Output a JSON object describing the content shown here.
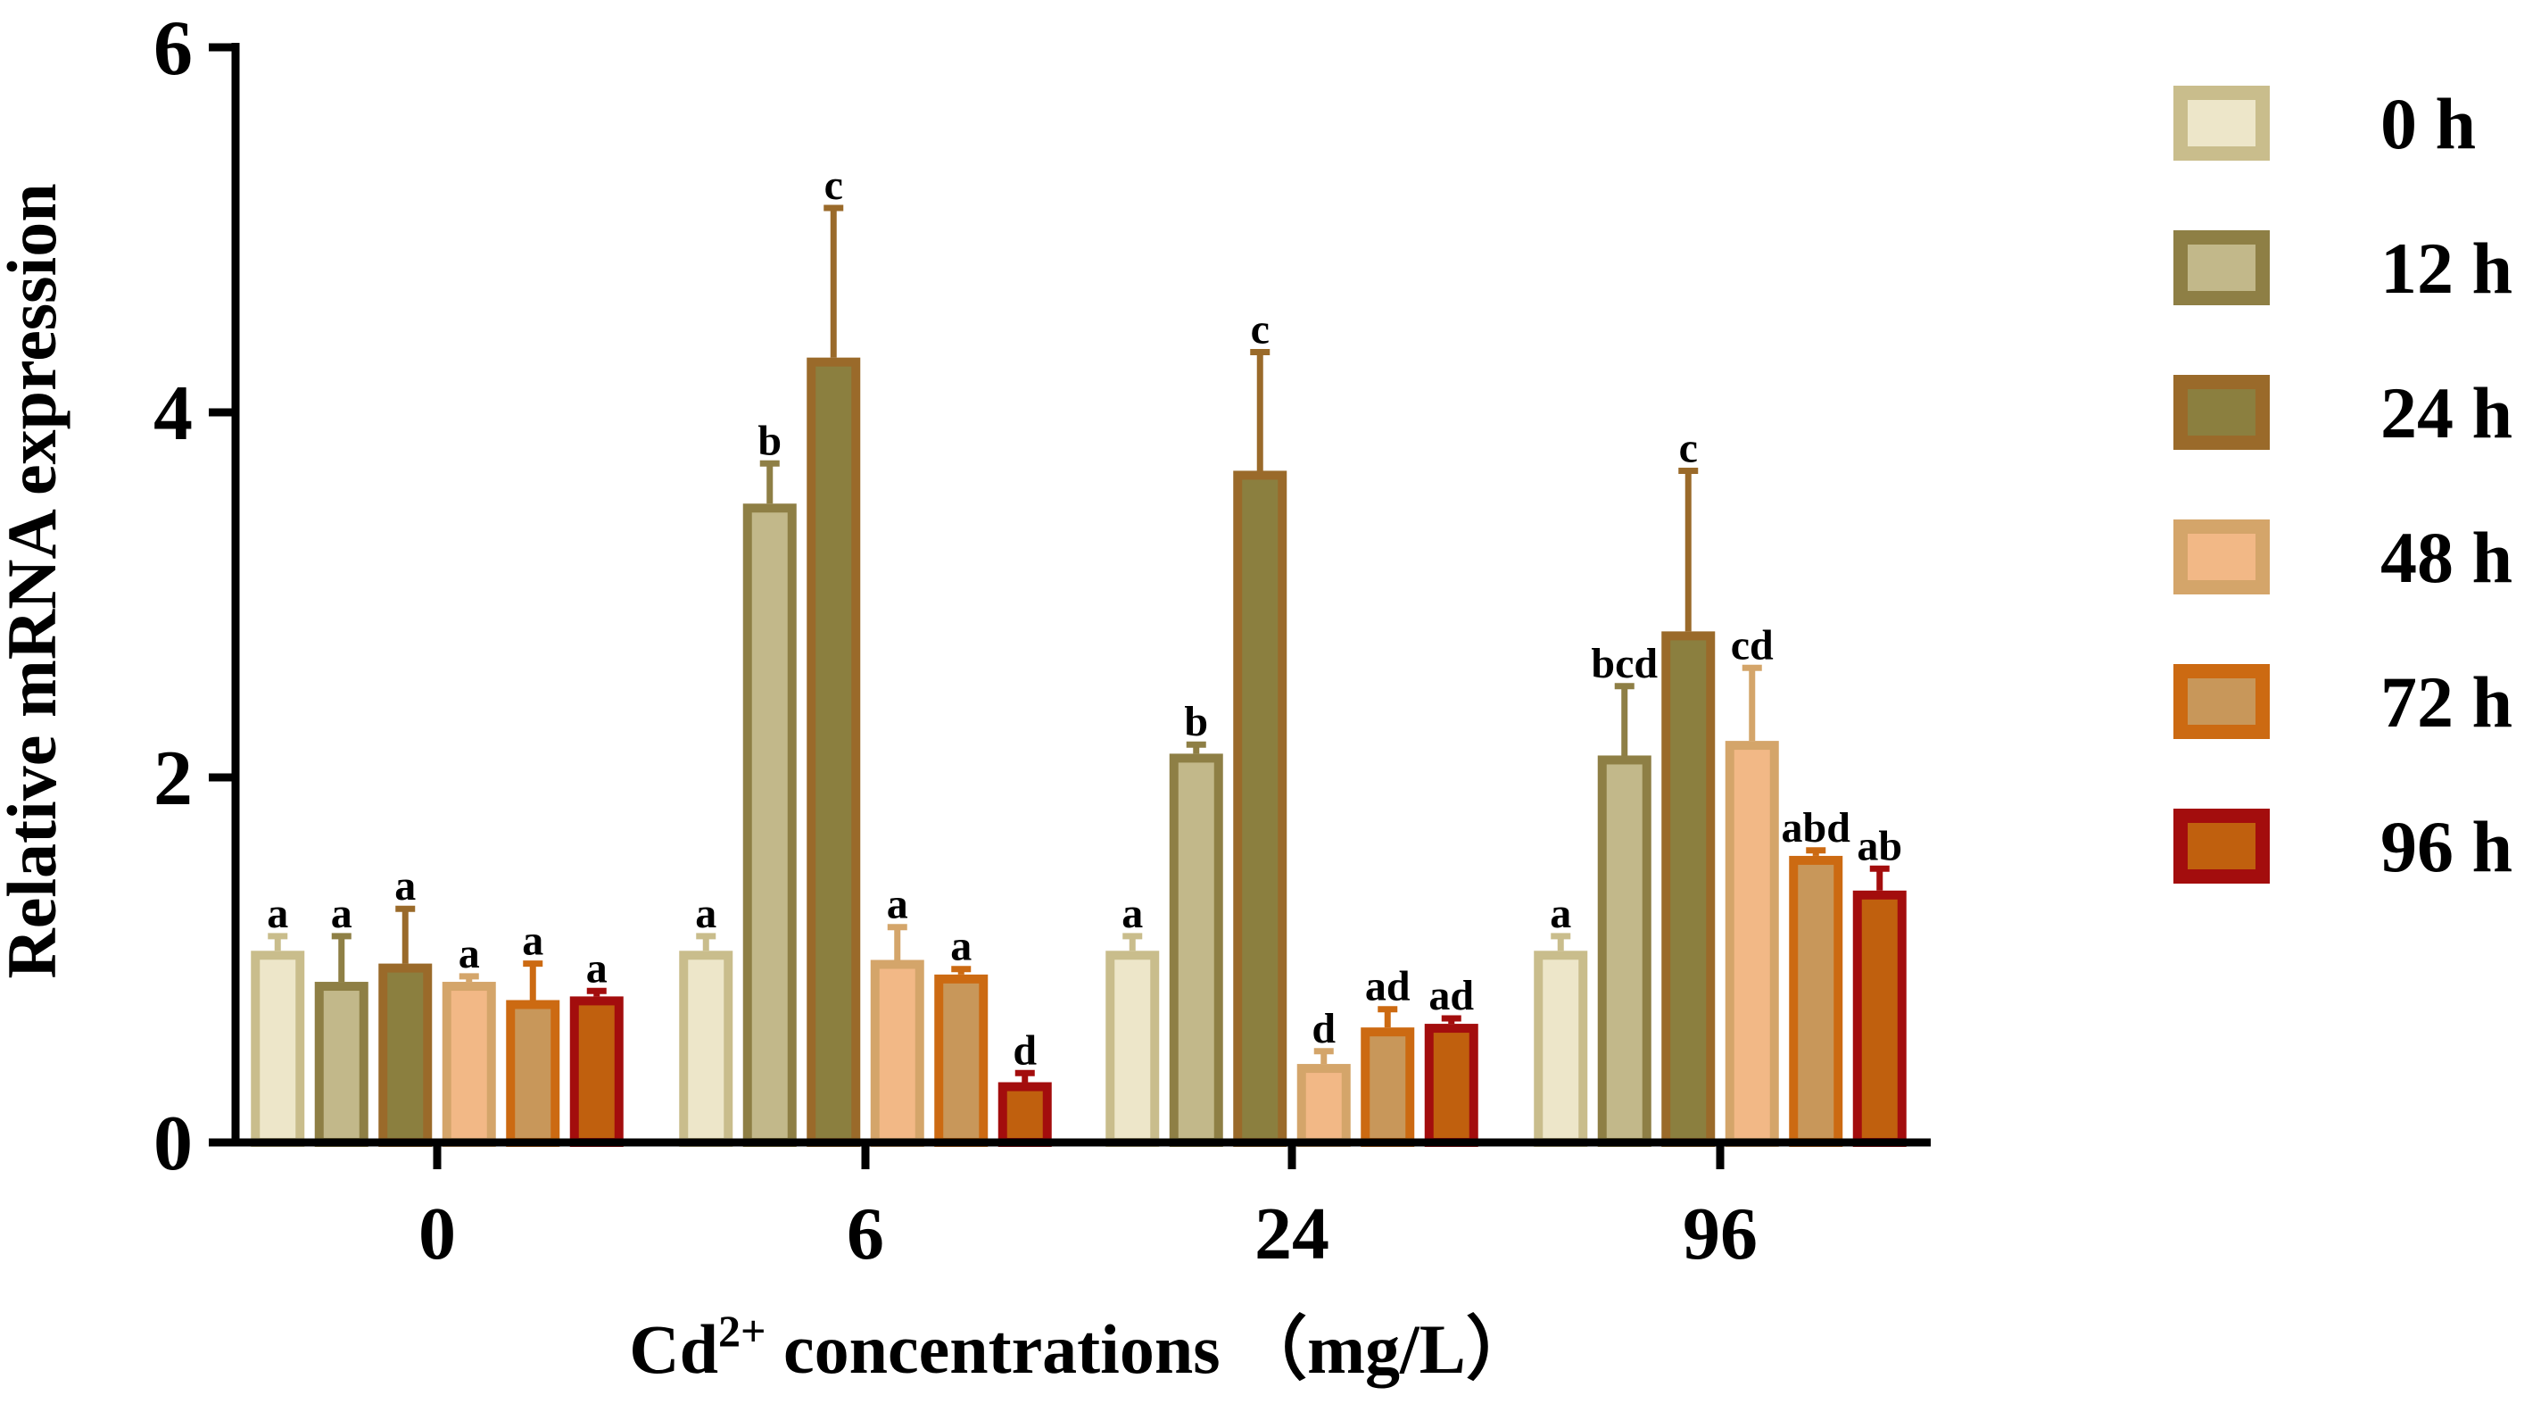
{
  "chart_data": {
    "type": "bar",
    "title": "",
    "xlabel_main": "Cd",
    "xlabel_sup": "2+",
    "xlabel_rest": " concentrations （mg/L）",
    "ylabel": "Relative mRNA expression",
    "ylim": [
      0,
      6
    ],
    "yticks": [
      "0",
      "2",
      "4",
      "6"
    ],
    "categories": [
      "0",
      "6",
      "24",
      "96"
    ],
    "series": [
      {
        "name": "0 h",
        "fill": "#ede6c9",
        "stroke": "#c9bd8c",
        "values": [
          1.05,
          1.05,
          1.05,
          1.05
        ],
        "errors": [
          0.08,
          0.08,
          0.08,
          0.08
        ],
        "labels": [
          "a",
          "a",
          "a",
          "a"
        ]
      },
      {
        "name": "12 h",
        "fill": "#c2b88a",
        "stroke": "#8e7f45",
        "values": [
          0.88,
          3.5,
          2.13,
          2.12
        ],
        "errors": [
          0.25,
          0.22,
          0.05,
          0.38
        ],
        "labels": [
          "a",
          "b",
          "b",
          "bcd"
        ]
      },
      {
        "name": "24 h",
        "fill": "#8b7f3f",
        "stroke": "#9a6a2a",
        "values": [
          0.98,
          4.3,
          3.68,
          2.8
        ],
        "errors": [
          0.3,
          0.82,
          0.65,
          0.88
        ],
        "labels": [
          "a",
          "c",
          "c",
          "c"
        ]
      },
      {
        "name": "48 h",
        "fill": "#f2b886",
        "stroke": "#d4a56a",
        "values": [
          0.88,
          1.0,
          0.43,
          2.2
        ],
        "errors": [
          0.03,
          0.18,
          0.07,
          0.4
        ],
        "labels": [
          "a",
          "a",
          "d",
          "cd"
        ]
      },
      {
        "name": "72 h",
        "fill": "#c8975a",
        "stroke": "#cc6a12",
        "values": [
          0.78,
          0.92,
          0.63,
          1.57
        ],
        "errors": [
          0.2,
          0.03,
          0.1,
          0.03
        ],
        "labels": [
          "a",
          "a",
          "ad",
          "abd"
        ]
      },
      {
        "name": "96 h",
        "fill": "#c0600e",
        "stroke": "#a30d0d",
        "values": [
          0.8,
          0.33,
          0.65,
          1.38
        ],
        "errors": [
          0.03,
          0.05,
          0.03,
          0.12
        ],
        "labels": [
          "a",
          "d",
          "ad",
          "ab"
        ]
      }
    ],
    "axis_color": "#000000",
    "legend_position": "right"
  }
}
